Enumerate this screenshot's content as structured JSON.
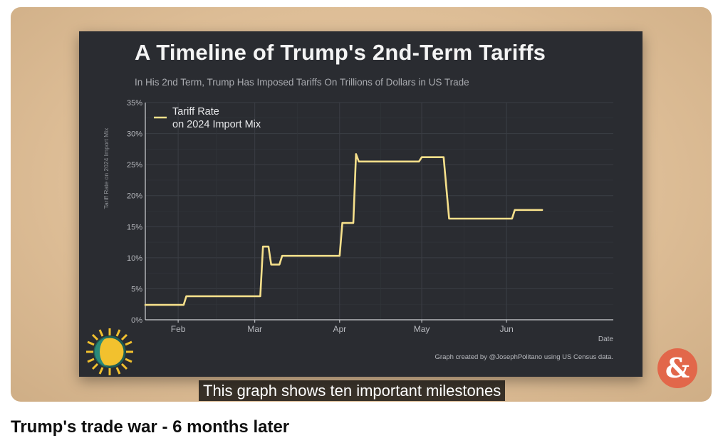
{
  "video": {
    "title": "Trump's trade war - 6 months later",
    "caption": "This graph shows ten important milestones",
    "amp_logo": "&"
  },
  "chart_data": {
    "type": "line",
    "title": "A Timeline of Trump's 2nd-Term Tariffs",
    "subtitle": "In His 2nd Term, Trump Has Imposed Tariffs On Trillions of Dollars in US Trade",
    "xlabel": "Date",
    "ylabel": "Tariff Rate on 2024 Import Mix",
    "ylim": [
      0,
      35
    ],
    "yticks": [
      0,
      5,
      10,
      15,
      20,
      25,
      30,
      35
    ],
    "ytick_labels": [
      "0%",
      "5%",
      "10%",
      "15%",
      "20%",
      "25%",
      "30%",
      "35%"
    ],
    "xlim": [
      "2025-01-20",
      "2025-07-10"
    ],
    "xticks": [
      {
        "date": "2025-02-01",
        "label": "Feb"
      },
      {
        "date": "2025-03-01",
        "label": "Mar"
      },
      {
        "date": "2025-04-01",
        "label": "Apr"
      },
      {
        "date": "2025-05-01",
        "label": "May"
      },
      {
        "date": "2025-06-01",
        "label": "Jun"
      }
    ],
    "grid": true,
    "legend": {
      "position": "top-left",
      "label_line1": "Tariff Rate",
      "label_line2": "on 2024 Import Mix"
    },
    "credit": "Graph created by @JosephPolitano using US Census data.",
    "series": [
      {
        "name": "Tariff Rate on 2024 Import Mix",
        "color": "#f6e08b",
        "points": [
          [
            "2025-01-20",
            2.4
          ],
          [
            "2025-02-03",
            2.4
          ],
          [
            "2025-02-04",
            3.8
          ],
          [
            "2025-03-03",
            3.8
          ],
          [
            "2025-03-04",
            11.8
          ],
          [
            "2025-03-06",
            11.8
          ],
          [
            "2025-03-07",
            8.9
          ],
          [
            "2025-03-10",
            8.9
          ],
          [
            "2025-03-11",
            10.3
          ],
          [
            "2025-04-01",
            10.3
          ],
          [
            "2025-04-02",
            15.6
          ],
          [
            "2025-04-06",
            15.6
          ],
          [
            "2025-04-07",
            26.7
          ],
          [
            "2025-04-08",
            25.5
          ],
          [
            "2025-04-30",
            25.5
          ],
          [
            "2025-05-01",
            26.2
          ],
          [
            "2025-05-09",
            26.2
          ],
          [
            "2025-05-11",
            16.3
          ],
          [
            "2025-06-03",
            16.3
          ],
          [
            "2025-06-04",
            17.7
          ],
          [
            "2025-06-14",
            17.7
          ]
        ]
      }
    ]
  }
}
